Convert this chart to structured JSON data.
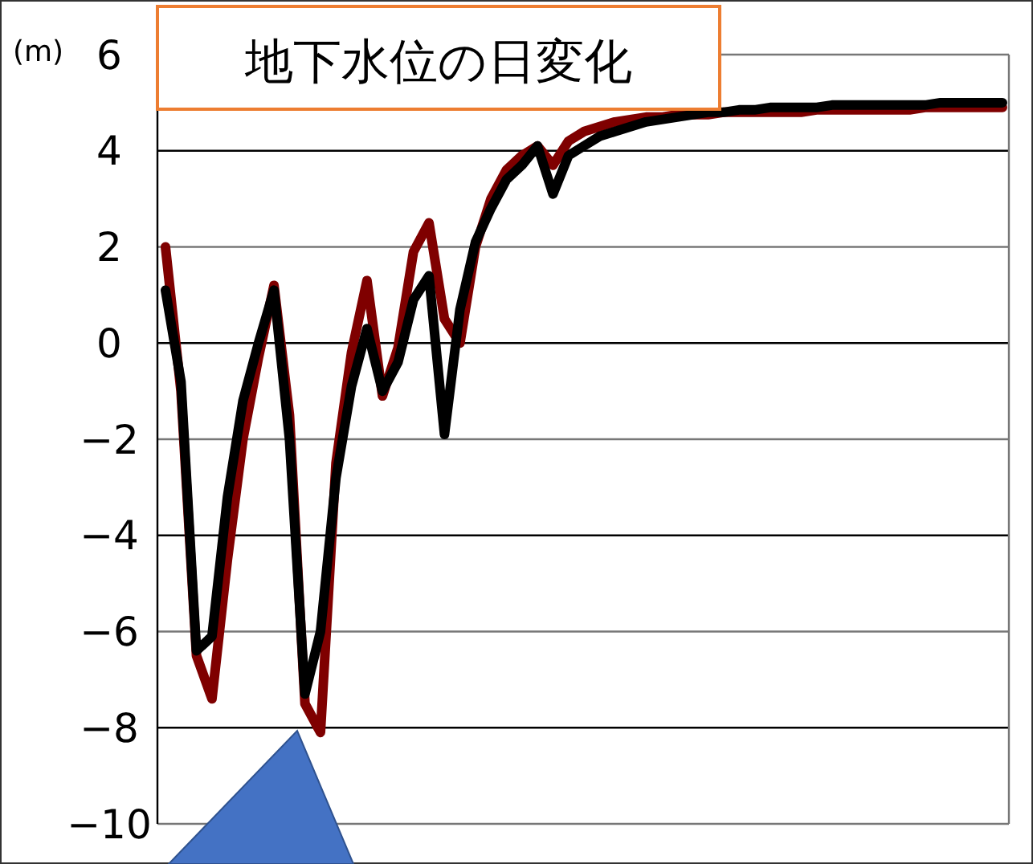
{
  "chart_data": {
    "type": "line",
    "title": "地下水位の日変化",
    "ylabel": "(m)",
    "categories": [
      null,
      null,
      null,
      null,
      null,
      null,
      null,
      null,
      null,
      null,
      null,
      null,
      null,
      null,
      null,
      null,
      null,
      null,
      null,
      null,
      null,
      null,
      null,
      null,
      null,
      null,
      null,
      null,
      null,
      null,
      null,
      null,
      null,
      null,
      null,
      null,
      null,
      null,
      null,
      null,
      null,
      null,
      null,
      null,
      null,
      null,
      null,
      null,
      null,
      null,
      null,
      null,
      null,
      null,
      null
    ],
    "series": [
      {
        "color": "#7f0000",
        "values": [
          2.0,
          -1.0,
          -6.5,
          -7.4,
          -4.5,
          -2.0,
          -0.3,
          1.2,
          -1.5,
          -7.5,
          -8.1,
          -2.5,
          -0.2,
          1.3,
          -1.1,
          -0.1,
          1.9,
          2.5,
          0.5,
          0.0,
          2.0,
          3.0,
          3.6,
          3.9,
          4.1,
          3.7,
          4.2,
          4.4,
          4.5,
          4.6,
          4.65,
          4.7,
          4.7,
          4.75,
          4.75,
          4.75,
          4.8,
          4.8,
          4.8,
          4.8,
          4.8,
          4.8,
          4.85,
          4.85,
          4.85,
          4.85,
          4.85,
          4.85,
          4.85,
          4.9,
          4.9,
          4.9,
          4.9,
          4.9,
          4.9
        ]
      },
      {
        "color": "#000000",
        "values": [
          1.1,
          -0.8,
          -6.4,
          -6.1,
          -3.2,
          -1.2,
          0.0,
          1.1,
          -2.0,
          -7.3,
          -6.0,
          -2.8,
          -0.9,
          0.3,
          -1.0,
          -0.4,
          0.9,
          1.4,
          -1.9,
          0.7,
          2.1,
          2.8,
          3.4,
          3.7,
          4.1,
          3.1,
          3.9,
          4.1,
          4.3,
          4.4,
          4.5,
          4.6,
          4.65,
          4.7,
          4.75,
          4.8,
          4.8,
          4.85,
          4.85,
          4.9,
          4.9,
          4.9,
          4.9,
          4.95,
          4.95,
          4.95,
          4.95,
          4.95,
          4.95,
          4.95,
          5.0,
          5.0,
          5.0,
          5.0,
          5.0
        ]
      }
    ],
    "ylim": [
      -10,
      6
    ],
    "yticks": [
      -10,
      -8,
      -6,
      -4,
      -2,
      0,
      2,
      4,
      6
    ],
    "grid": "y",
    "marker": "none",
    "line_style": "solid"
  }
}
